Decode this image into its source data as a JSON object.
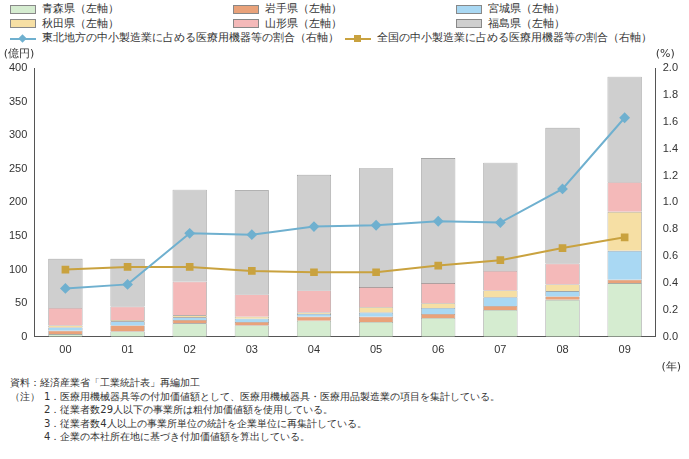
{
  "chart_data": {
    "type": "bar",
    "stacked": true,
    "grid": false,
    "legend": "top",
    "categories": [
      "00",
      "01",
      "02",
      "03",
      "04",
      "05",
      "06",
      "07",
      "08",
      "09"
    ],
    "x_label": "(年)",
    "y_label": "(億円)",
    "y2_label": "(%)",
    "ylim": [
      0,
      400
    ],
    "yticks": [
      0,
      50,
      100,
      150,
      200,
      250,
      300,
      350,
      400
    ],
    "y2lim": [
      0,
      2.0
    ],
    "y2ticks": [
      {
        "value": 0,
        "label": "0.0"
      },
      0.2,
      0.4,
      0.6,
      0.8,
      {
        "value": 1,
        "label": "1.0"
      },
      1.2,
      1.4,
      1.6,
      1.8,
      {
        "value": 2,
        "label": "2.0"
      }
    ],
    "series": [
      {
        "name": "青森県（左軸）",
        "type": "bar",
        "color": "#d5ecd0",
        "values": [
          4,
          8,
          20,
          17,
          24,
          22,
          28,
          40,
          55,
          80
        ]
      },
      {
        "name": "岩手県（左軸）",
        "type": "bar",
        "color": "#e9a27a",
        "values": [
          5,
          9,
          5,
          5,
          6,
          8,
          6,
          6,
          5,
          5
        ]
      },
      {
        "name": "宮城県（左軸）",
        "type": "bar",
        "color": "#a9d8f3",
        "values": [
          5,
          6,
          4,
          5,
          4,
          6,
          9,
          13,
          8,
          43
        ]
      },
      {
        "name": "秋田県（左軸）",
        "type": "bar",
        "color": "#f6dfa4",
        "values": [
          3,
          2,
          3,
          3,
          2,
          8,
          7,
          10,
          10,
          58
        ]
      },
      {
        "name": "山形県（左軸）",
        "type": "bar",
        "color": "#f4b9b9",
        "values": [
          26,
          20,
          50,
          33,
          33,
          30,
          30,
          29,
          31,
          44
        ]
      },
      {
        "name": "福島県（左軸）",
        "type": "bar",
        "color": "#cfcfcf",
        "values": [
          73,
          71,
          137,
          155,
          172,
          177,
          186,
          161,
          202,
          157
        ]
      },
      {
        "name": "東北地方の中小製造業に占める医療用機器等の割合（右軸）",
        "type": "line",
        "axis": "y2",
        "color": "#6fb0cf",
        "marker": "diamond",
        "values": [
          0.36,
          0.39,
          0.77,
          0.76,
          0.82,
          0.83,
          0.86,
          0.85,
          1.1,
          1.63
        ]
      },
      {
        "name": "全国の中小製造業に占める医療用機器等の割合（右軸）",
        "type": "line",
        "axis": "y2",
        "color": "#c9a23f",
        "marker": "square",
        "values": [
          0.5,
          0.52,
          0.52,
          0.49,
          0.48,
          0.48,
          0.53,
          0.57,
          0.66,
          0.74
        ]
      }
    ],
    "source": "資料：経済産業省「工業統計表」再編加工",
    "note_label": "（注）",
    "notes": [
      "1．医療用機械器具等の付加価値額として、医療用機械器具・医療用品製造業の項目を集計している。",
      "2．従業者数29人以下の事業所は粗付加価値額を使用している。",
      "3．従業者数4人以上の事業所単位の統計を企業単位に再集計している。",
      "4．企業の本社所在地に基づき付加価値額を算出している。"
    ]
  }
}
